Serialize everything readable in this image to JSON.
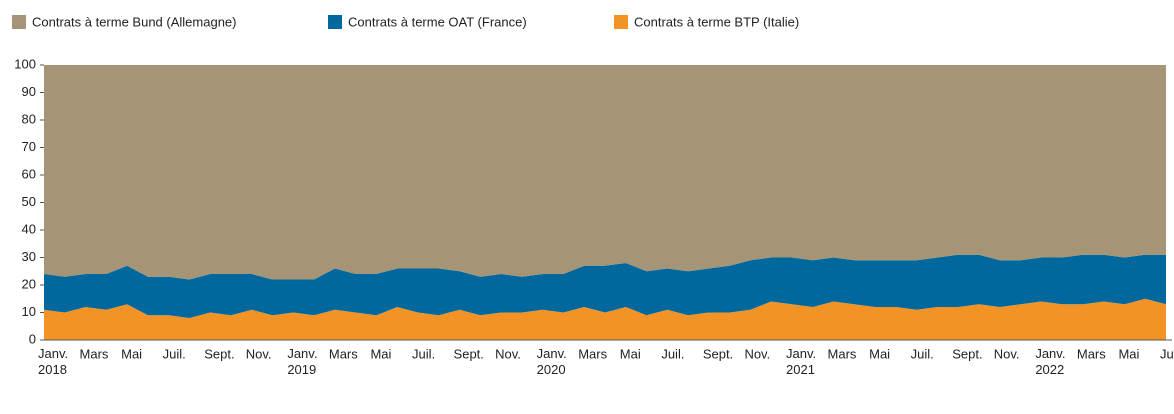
{
  "chart_data": {
    "type": "stacked_area",
    "categories": [
      "Janv. 2018",
      null,
      "Mars",
      null,
      "Mai",
      null,
      "Juil.",
      null,
      "Sept.",
      null,
      "Nov.",
      null,
      "Janv. 2019",
      null,
      "Mars",
      null,
      "Mai",
      null,
      "Juil.",
      null,
      "Sept.",
      null,
      "Nov.",
      null,
      "Janv. 2020",
      null,
      "Mars",
      null,
      "Mai",
      null,
      "Juil.",
      null,
      "Sept.",
      null,
      "Nov.",
      null,
      "Janv. 2021",
      null,
      "Mars",
      null,
      "Mai",
      null,
      "Juil.",
      null,
      "Sept.",
      null,
      "Nov.",
      null,
      "Janv. 2022",
      null,
      "Mars",
      null,
      "Mai",
      null,
      "Juil."
    ],
    "series": [
      {
        "name": "Contrats à terme Bund (Allemagne)",
        "color": "#a59475",
        "values": [
          76,
          77,
          76,
          76,
          73,
          77,
          77,
          78,
          76,
          76,
          76,
          78,
          78,
          78,
          74,
          76,
          76,
          74,
          74,
          74,
          75,
          77,
          76,
          77,
          76,
          76,
          73,
          73,
          72,
          75,
          74,
          75,
          74,
          73,
          71,
          70,
          70,
          71,
          70,
          71,
          71,
          71,
          71,
          70,
          69,
          69,
          71,
          71,
          70,
          70,
          69,
          69,
          70,
          69,
          69
        ]
      },
      {
        "name": "Contrats à terme OAT (France)",
        "color": "#00689c",
        "values": [
          13,
          13,
          12,
          13,
          14,
          14,
          14,
          14,
          14,
          15,
          13,
          13,
          12,
          13,
          15,
          14,
          15,
          14,
          16,
          17,
          14,
          14,
          14,
          13,
          13,
          14,
          15,
          17,
          16,
          16,
          15,
          16,
          16,
          17,
          18,
          16,
          17,
          17,
          16,
          16,
          17,
          17,
          18,
          18,
          19,
          18,
          17,
          16,
          16,
          17,
          18,
          17,
          17,
          16,
          18
        ]
      },
      {
        "name": "Contrats à terme BTP (Italie)",
        "color": "#f39325",
        "values": [
          11,
          10,
          12,
          11,
          13,
          9,
          9,
          8,
          10,
          9,
          11,
          9,
          10,
          9,
          11,
          10,
          9,
          12,
          10,
          9,
          11,
          9,
          10,
          10,
          11,
          10,
          12,
          10,
          12,
          9,
          11,
          9,
          10,
          10,
          11,
          14,
          13,
          12,
          14,
          13,
          12,
          12,
          11,
          12,
          12,
          13,
          12,
          13,
          14,
          13,
          13,
          14,
          13,
          15,
          13
        ]
      }
    ],
    "ylim": [
      0,
      100
    ],
    "yticks": [
      0,
      10,
      20,
      30,
      40,
      50,
      60,
      70,
      80,
      90,
      100
    ]
  }
}
